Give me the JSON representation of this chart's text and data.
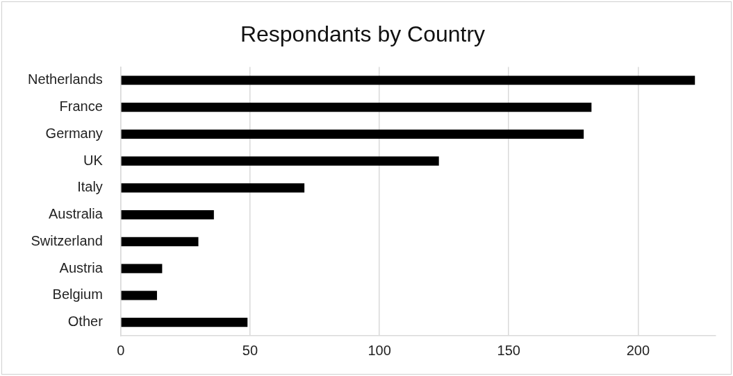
{
  "chart_data": {
    "type": "bar",
    "orientation": "horizontal",
    "title": "Respondants by Country",
    "categories": [
      "Netherlands",
      "France",
      "Germany",
      "UK",
      "Italy",
      "Australia",
      "Switzerland",
      "Austria",
      "Belgium",
      "Other"
    ],
    "values": [
      222,
      182,
      179,
      123,
      71,
      36,
      30,
      16,
      14,
      49
    ],
    "color": "#000000",
    "xlim": [
      0,
      230
    ],
    "xticks": [
      0,
      50,
      100,
      150,
      200
    ],
    "grid": "x",
    "legend": false
  }
}
